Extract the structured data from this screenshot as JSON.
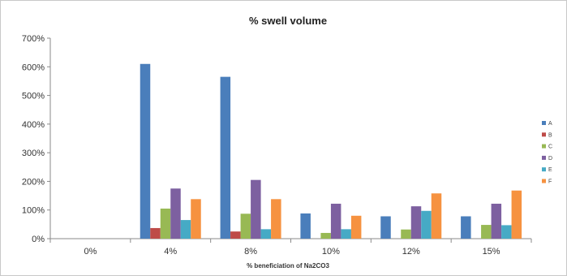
{
  "chart_data": {
    "type": "bar",
    "title": "% swell  volume",
    "xlabel": "% beneficiation of Na2CO3",
    "ylabel": "",
    "categories": [
      "0%",
      "4%",
      "8%",
      "10%",
      "12%",
      "15%"
    ],
    "ylim": [
      0,
      700
    ],
    "yticks": [
      0,
      100,
      200,
      300,
      400,
      500,
      600,
      700
    ],
    "ytick_labels": [
      "0%",
      "100%",
      "200%",
      "300%",
      "400%",
      "500%",
      "600%",
      "700%"
    ],
    "grid": false,
    "legend_position": "right",
    "series": [
      {
        "name": "A",
        "color": "#4a7ebb",
        "values": [
          0,
          610,
          565,
          88,
          78,
          78
        ]
      },
      {
        "name": "B",
        "color": "#be4b48",
        "values": [
          0,
          37,
          25,
          0,
          0,
          0
        ]
      },
      {
        "name": "C",
        "color": "#98b954",
        "values": [
          0,
          105,
          87,
          20,
          32,
          48
        ]
      },
      {
        "name": "D",
        "color": "#7d60a0",
        "values": [
          0,
          175,
          205,
          122,
          113,
          122
        ]
      },
      {
        "name": "E",
        "color": "#46aac5",
        "values": [
          0,
          65,
          33,
          33,
          97,
          47
        ]
      },
      {
        "name": "F",
        "color": "#f69240",
        "values": [
          0,
          138,
          138,
          80,
          158,
          168
        ]
      }
    ]
  }
}
